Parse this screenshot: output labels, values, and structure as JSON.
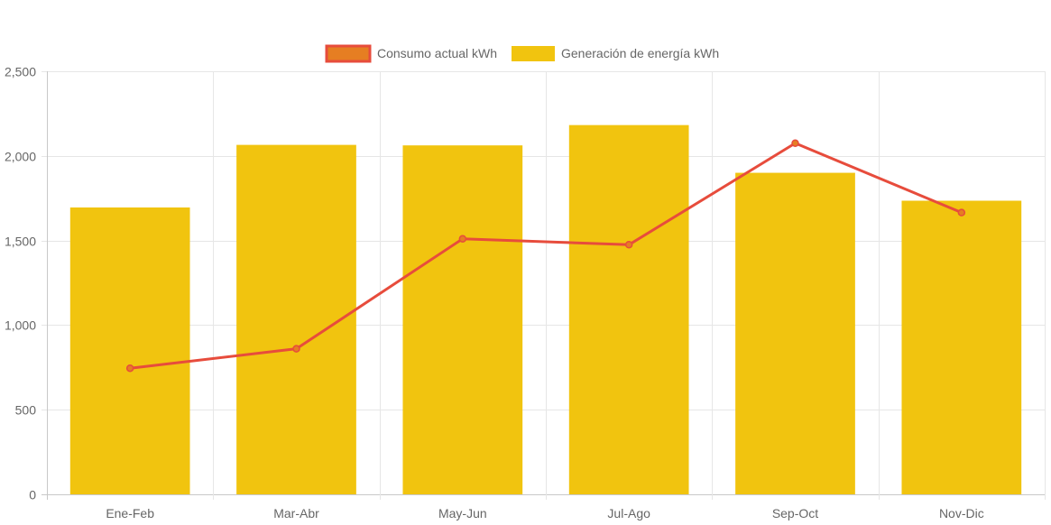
{
  "chart_data": {
    "type": "bar",
    "categories": [
      "Ene-Feb",
      "Mar-Abr",
      "May-Jun",
      "Jul-Ago",
      "Sep-Oct",
      "Nov-Dic"
    ],
    "ylim": [
      0,
      2500
    ],
    "yticks": [
      0,
      500,
      1000,
      1500,
      2000,
      2500
    ],
    "ytick_labels": [
      "0",
      "500",
      "1,000",
      "1,500",
      "2,000",
      "2,500"
    ],
    "grid": true,
    "legend_position": "top-center",
    "series": [
      {
        "name": "Consumo actual kWh",
        "type": "line",
        "values": [
          745,
          860,
          1510,
          1475,
          2075,
          1665
        ],
        "color": "#e74c3c",
        "point_fill": "#e67e22"
      },
      {
        "name": "Generación de energía kWh",
        "type": "bar",
        "values": [
          1695,
          2065,
          2062,
          2182,
          1900,
          1735
        ],
        "color": "#f1c40f"
      }
    ]
  }
}
